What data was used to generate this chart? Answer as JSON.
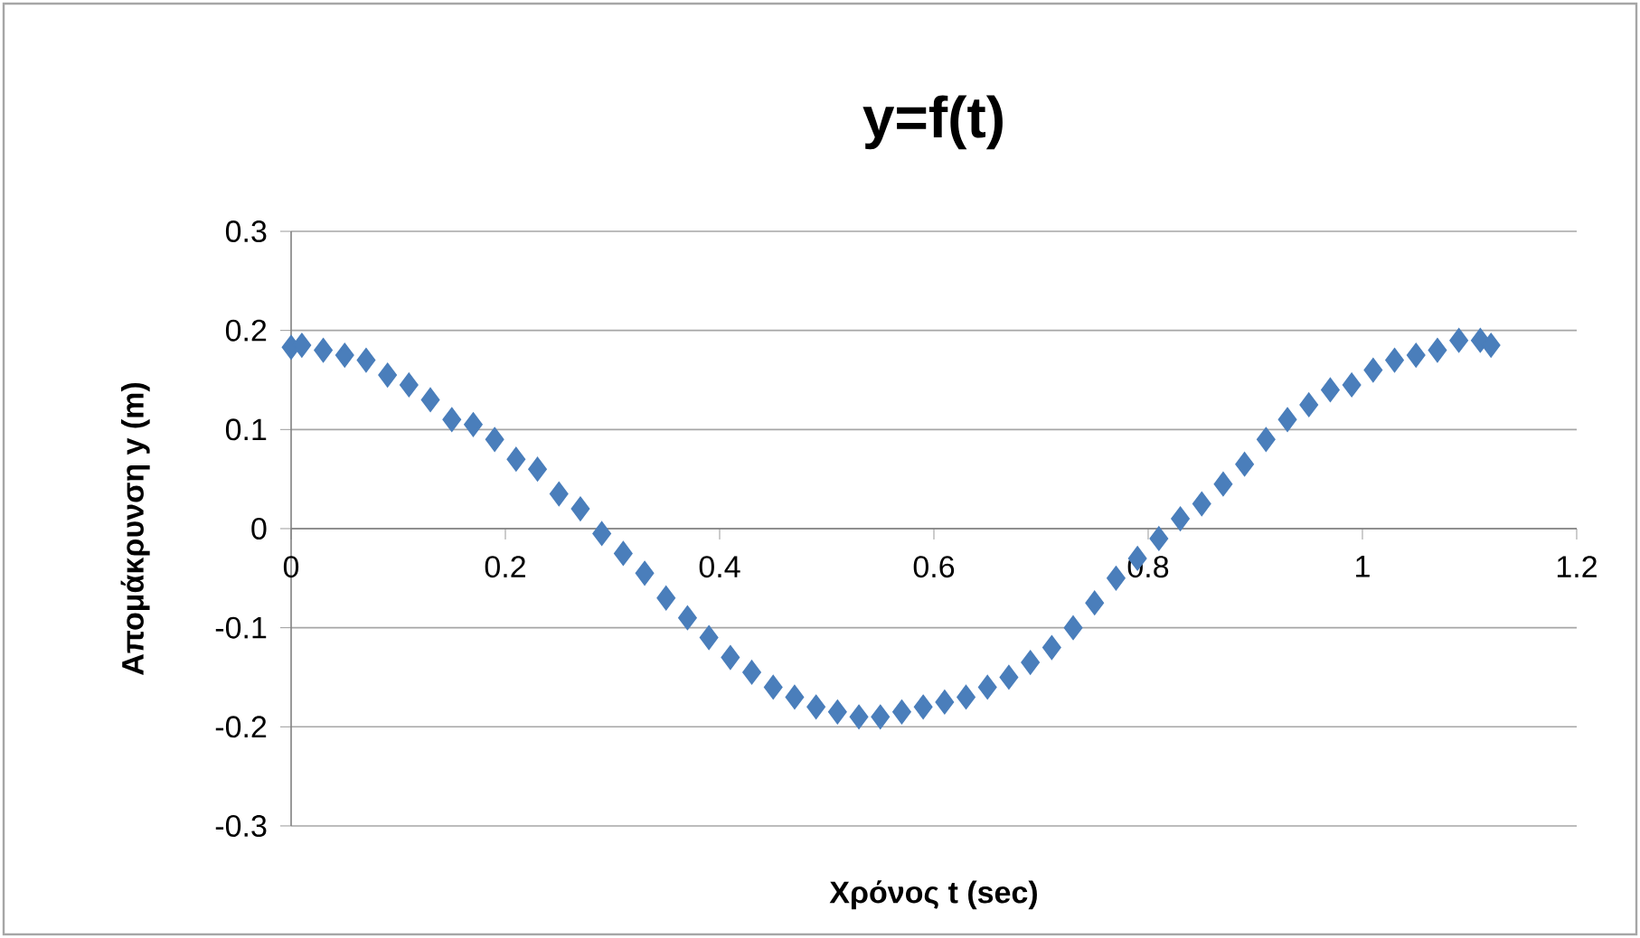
{
  "chart_data": {
    "type": "scatter",
    "title": "y=f(t)",
    "xlabel": "Χρόνος t (sec)",
    "ylabel": "Απομάκρυνση y (m)",
    "x": [
      0,
      0.01,
      0.03,
      0.05,
      0.07,
      0.09,
      0.11,
      0.13,
      0.15,
      0.17,
      0.19,
      0.21,
      0.23,
      0.25,
      0.27,
      0.29,
      0.31,
      0.33,
      0.35,
      0.37,
      0.39,
      0.41,
      0.43,
      0.45,
      0.47,
      0.49,
      0.51,
      0.53,
      0.55,
      0.57,
      0.59,
      0.61,
      0.63,
      0.65,
      0.67,
      0.69,
      0.71,
      0.73,
      0.75,
      0.77,
      0.79,
      0.81,
      0.83,
      0.85,
      0.87,
      0.89,
      0.91,
      0.93,
      0.95,
      0.97,
      0.99,
      1.01,
      1.03,
      1.05,
      1.07,
      1.09,
      1.11,
      1.12
    ],
    "values": [
      0.183,
      0.185,
      0.18,
      0.175,
      0.17,
      0.155,
      0.145,
      0.13,
      0.11,
      0.105,
      0.09,
      0.07,
      0.06,
      0.035,
      0.02,
      -0.005,
      -0.025,
      -0.045,
      -0.07,
      -0.09,
      -0.11,
      -0.13,
      -0.145,
      -0.16,
      -0.17,
      -0.18,
      -0.185,
      -0.19,
      -0.19,
      -0.185,
      -0.18,
      -0.175,
      -0.17,
      -0.16,
      -0.15,
      -0.135,
      -0.12,
      -0.1,
      -0.075,
      -0.05,
      -0.03,
      -0.01,
      0.01,
      0.025,
      0.045,
      0.065,
      0.09,
      0.11,
      0.125,
      0.14,
      0.145,
      0.16,
      0.17,
      0.175,
      0.18,
      0.19,
      0.19,
      0.185
    ],
    "color": "#4a7ebb",
    "marker": "diamond",
    "xlim": [
      0,
      1.2
    ],
    "ylim": [
      -0.3,
      0.3
    ],
    "xticks": [
      0,
      0.2,
      0.4,
      0.6,
      0.8,
      1,
      1.2
    ],
    "yticks": [
      -0.3,
      -0.2,
      -0.1,
      0,
      0.1,
      0.2,
      0.3
    ],
    "grid": "y"
  }
}
